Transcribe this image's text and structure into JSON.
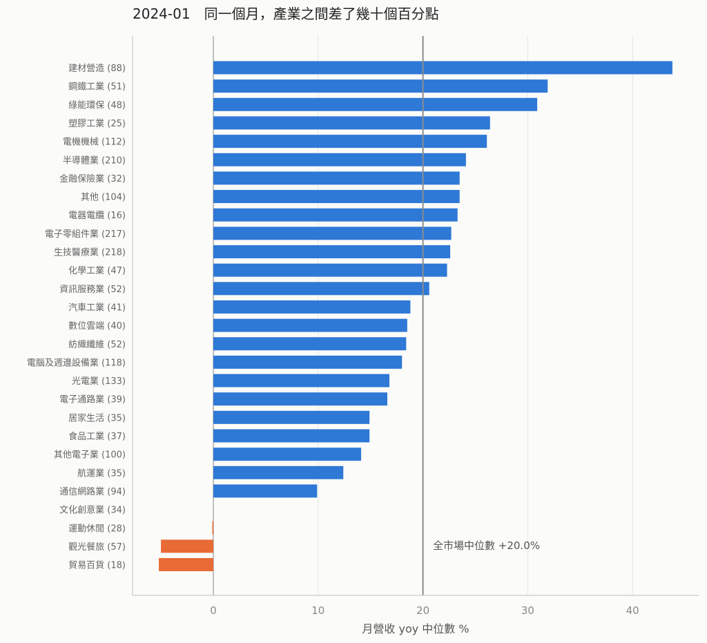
{
  "chart_data": {
    "type": "bar",
    "orientation": "horizontal",
    "title": "2024-01　同一個月，產業之間差了幾十個百分點",
    "xlabel": "月營收 yoy 中位數 %",
    "ylabel": "",
    "xlim": [
      -7.8,
      46.5
    ],
    "xticks": [
      0,
      10,
      20,
      30,
      40
    ],
    "grid": "x",
    "categories": [
      "建材營造 (88)",
      "鋼鐵工業 (51)",
      "綠能環保 (48)",
      "塑膠工業 (25)",
      "電機機械 (112)",
      "半導體業 (210)",
      "金融保險業 (32)",
      "其他 (104)",
      "電器電纜 (16)",
      "電子零組件業 (217)",
      "生技醫療業 (218)",
      "化學工業 (47)",
      "資訊服務業 (52)",
      "汽車工業 (41)",
      "數位雲端 (40)",
      "紡織纖維 (52)",
      "電腦及週邊設備業 (118)",
      "光電業 (133)",
      "電子通路業 (39)",
      "居家生活 (35)",
      "食品工業 (37)",
      "其他電子業 (100)",
      "航運業 (35)",
      "通信網路業 (94)",
      "文化創意業 (34)",
      "運動休閒 (28)",
      "觀光餐旅 (57)",
      "貿易百貨 (18)"
    ],
    "values": [
      43.8,
      31.9,
      30.9,
      26.4,
      26.1,
      24.1,
      23.5,
      23.5,
      23.3,
      22.7,
      22.6,
      22.3,
      20.6,
      18.8,
      18.5,
      18.4,
      18.0,
      16.8,
      16.6,
      14.9,
      14.9,
      14.1,
      12.4,
      9.9,
      0.0,
      -0.1,
      -5.0,
      -5.2
    ],
    "positive_color": "#2e78d6",
    "negative_color": "#e86a35",
    "reference_line": {
      "value": 20.0,
      "label": "全市場中位數 +20.0%"
    }
  }
}
